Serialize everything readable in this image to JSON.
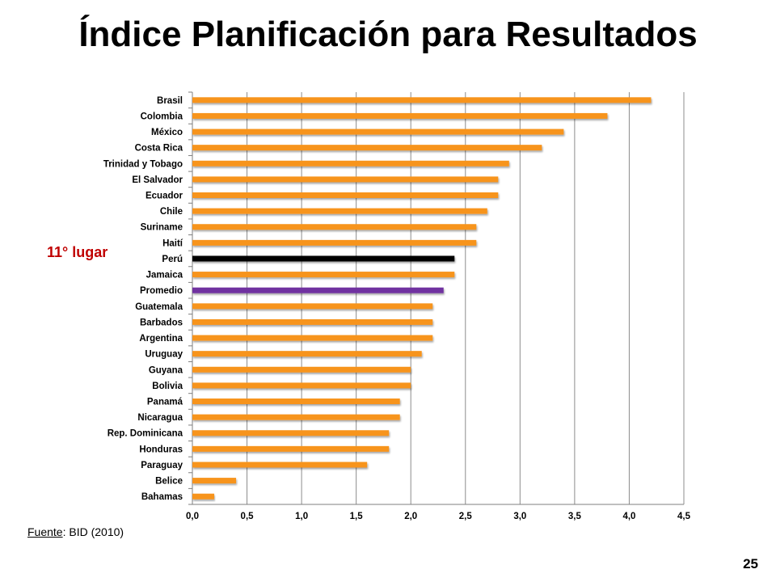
{
  "slide": {
    "title": "Índice Planificación para Resultados",
    "callout": "11° lugar",
    "source_label": "Fuente",
    "source_text": ": BID (2010)",
    "page_number": "25"
  },
  "colors": {
    "default_bar": "#f7941d",
    "highlight_bar": "#000000",
    "average_bar": "#7030a0",
    "callout": "#c00000"
  },
  "chart_data": {
    "type": "bar",
    "orientation": "horizontal",
    "title": "Índice Planificación para Resultados",
    "xlabel": "",
    "ylabel": "",
    "xlim": [
      0,
      4.5
    ],
    "x_ticks": [
      "0,0",
      "0,5",
      "1,0",
      "1,5",
      "2,0",
      "2,5",
      "3,0",
      "3,5",
      "4,0",
      "4,5"
    ],
    "grid": "vertical",
    "categories": [
      "Brasil",
      "Colombia",
      "México",
      "Costa Rica",
      "Trinidad y Tobago",
      "El Salvador",
      "Ecuador",
      "Chile",
      "Suriname",
      "Haití",
      "Perú",
      "Jamaica",
      "Promedio",
      "Guatemala",
      "Barbados",
      "Argentina",
      "Uruguay",
      "Guyana",
      "Bolivia",
      "Panamá",
      "Nicaragua",
      "Rep. Dominicana",
      "Honduras",
      "Paraguay",
      "Belice",
      "Bahamas"
    ],
    "values": [
      4.2,
      3.8,
      3.4,
      3.2,
      2.9,
      2.8,
      2.8,
      2.7,
      2.6,
      2.6,
      2.4,
      2.4,
      2.3,
      2.2,
      2.2,
      2.2,
      2.1,
      2.0,
      2.0,
      1.9,
      1.9,
      1.8,
      1.8,
      1.6,
      0.4,
      0.2
    ],
    "highlight": "Perú",
    "average": "Promedio"
  }
}
